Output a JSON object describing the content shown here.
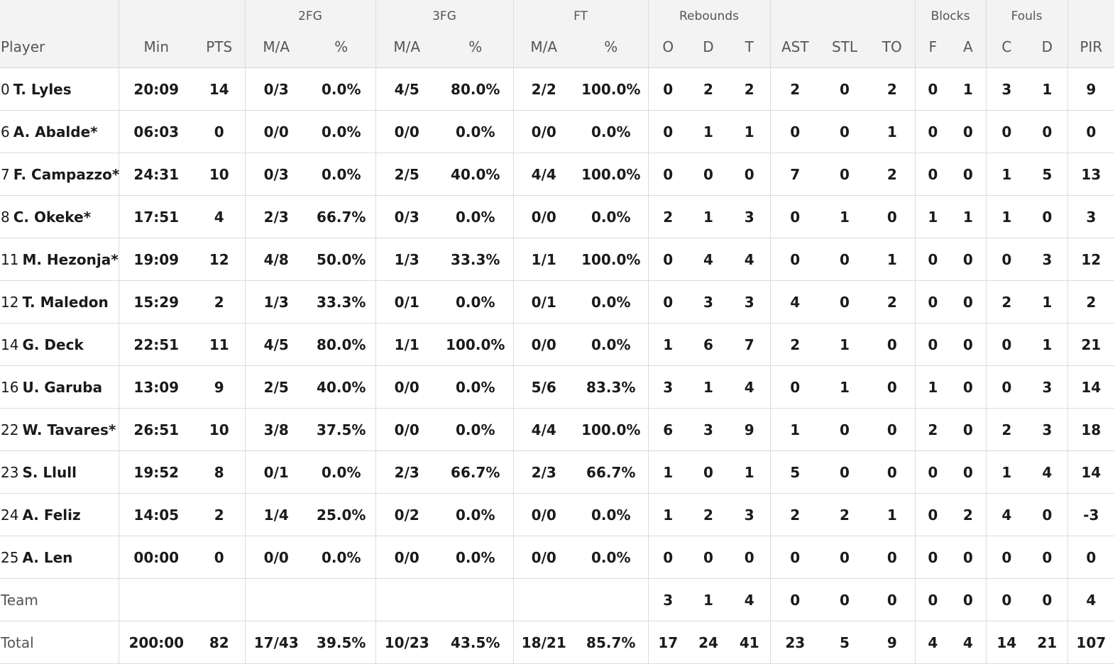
{
  "headers": {
    "groups": {
      "fg2": "2FG",
      "fg3": "3FG",
      "ft": "FT",
      "rebounds": "Rebounds",
      "blocks": "Blocks",
      "fouls": "Fouls"
    },
    "columns": {
      "player": "Player",
      "min": "Min",
      "pts": "PTS",
      "fg2_ma": "M/A",
      "fg2_pct": "%",
      "fg3_ma": "M/A",
      "fg3_pct": "%",
      "ft_ma": "M/A",
      "ft_pct": "%",
      "reb_o": "O",
      "reb_d": "D",
      "reb_t": "T",
      "ast": "AST",
      "stl": "STL",
      "to": "TO",
      "blk_f": "F",
      "blk_a": "A",
      "foul_c": "C",
      "foul_d": "D",
      "pir": "PIR"
    }
  },
  "rows": [
    {
      "num": "0",
      "name": "T. Lyles",
      "min": "20:09",
      "pts": "14",
      "fg2_ma": "0/3",
      "fg2_pct": "0.0%",
      "fg3_ma": "4/5",
      "fg3_pct": "80.0%",
      "ft_ma": "2/2",
      "ft_pct": "100.0%",
      "reb_o": "0",
      "reb_d": "2",
      "reb_t": "2",
      "ast": "2",
      "stl": "0",
      "to": "2",
      "blk_f": "0",
      "blk_a": "1",
      "foul_c": "3",
      "foul_d": "1",
      "pir": "9"
    },
    {
      "num": "6",
      "name": "A. Abalde*",
      "min": "06:03",
      "pts": "0",
      "fg2_ma": "0/0",
      "fg2_pct": "0.0%",
      "fg3_ma": "0/0",
      "fg3_pct": "0.0%",
      "ft_ma": "0/0",
      "ft_pct": "0.0%",
      "reb_o": "0",
      "reb_d": "1",
      "reb_t": "1",
      "ast": "0",
      "stl": "0",
      "to": "1",
      "blk_f": "0",
      "blk_a": "0",
      "foul_c": "0",
      "foul_d": "0",
      "pir": "0"
    },
    {
      "num": "7",
      "name": "F. Campazzo*",
      "min": "24:31",
      "pts": "10",
      "fg2_ma": "0/3",
      "fg2_pct": "0.0%",
      "fg3_ma": "2/5",
      "fg3_pct": "40.0%",
      "ft_ma": "4/4",
      "ft_pct": "100.0%",
      "reb_o": "0",
      "reb_d": "0",
      "reb_t": "0",
      "ast": "7",
      "stl": "0",
      "to": "2",
      "blk_f": "0",
      "blk_a": "0",
      "foul_c": "1",
      "foul_d": "5",
      "pir": "13"
    },
    {
      "num": "8",
      "name": "C. Okeke*",
      "min": "17:51",
      "pts": "4",
      "fg2_ma": "2/3",
      "fg2_pct": "66.7%",
      "fg3_ma": "0/3",
      "fg3_pct": "0.0%",
      "ft_ma": "0/0",
      "ft_pct": "0.0%",
      "reb_o": "2",
      "reb_d": "1",
      "reb_t": "3",
      "ast": "0",
      "stl": "1",
      "to": "0",
      "blk_f": "1",
      "blk_a": "1",
      "foul_c": "1",
      "foul_d": "0",
      "pir": "3"
    },
    {
      "num": "11",
      "name": "M. Hezonja*",
      "min": "19:09",
      "pts": "12",
      "fg2_ma": "4/8",
      "fg2_pct": "50.0%",
      "fg3_ma": "1/3",
      "fg3_pct": "33.3%",
      "ft_ma": "1/1",
      "ft_pct": "100.0%",
      "reb_o": "0",
      "reb_d": "4",
      "reb_t": "4",
      "ast": "0",
      "stl": "0",
      "to": "1",
      "blk_f": "0",
      "blk_a": "0",
      "foul_c": "0",
      "foul_d": "3",
      "pir": "12"
    },
    {
      "num": "12",
      "name": "T. Maledon",
      "min": "15:29",
      "pts": "2",
      "fg2_ma": "1/3",
      "fg2_pct": "33.3%",
      "fg3_ma": "0/1",
      "fg3_pct": "0.0%",
      "ft_ma": "0/1",
      "ft_pct": "0.0%",
      "reb_o": "0",
      "reb_d": "3",
      "reb_t": "3",
      "ast": "4",
      "stl": "0",
      "to": "2",
      "blk_f": "0",
      "blk_a": "0",
      "foul_c": "2",
      "foul_d": "1",
      "pir": "2"
    },
    {
      "num": "14",
      "name": "G. Deck",
      "min": "22:51",
      "pts": "11",
      "fg2_ma": "4/5",
      "fg2_pct": "80.0%",
      "fg3_ma": "1/1",
      "fg3_pct": "100.0%",
      "ft_ma": "0/0",
      "ft_pct": "0.0%",
      "reb_o": "1",
      "reb_d": "6",
      "reb_t": "7",
      "ast": "2",
      "stl": "1",
      "to": "0",
      "blk_f": "0",
      "blk_a": "0",
      "foul_c": "0",
      "foul_d": "1",
      "pir": "21"
    },
    {
      "num": "16",
      "name": "U. Garuba",
      "min": "13:09",
      "pts": "9",
      "fg2_ma": "2/5",
      "fg2_pct": "40.0%",
      "fg3_ma": "0/0",
      "fg3_pct": "0.0%",
      "ft_ma": "5/6",
      "ft_pct": "83.3%",
      "reb_o": "3",
      "reb_d": "1",
      "reb_t": "4",
      "ast": "0",
      "stl": "1",
      "to": "0",
      "blk_f": "1",
      "blk_a": "0",
      "foul_c": "0",
      "foul_d": "3",
      "pir": "14"
    },
    {
      "num": "22",
      "name": "W. Tavares*",
      "min": "26:51",
      "pts": "10",
      "fg2_ma": "3/8",
      "fg2_pct": "37.5%",
      "fg3_ma": "0/0",
      "fg3_pct": "0.0%",
      "ft_ma": "4/4",
      "ft_pct": "100.0%",
      "reb_o": "6",
      "reb_d": "3",
      "reb_t": "9",
      "ast": "1",
      "stl": "0",
      "to": "0",
      "blk_f": "2",
      "blk_a": "0",
      "foul_c": "2",
      "foul_d": "3",
      "pir": "18"
    },
    {
      "num": "23",
      "name": "S. Llull",
      "min": "19:52",
      "pts": "8",
      "fg2_ma": "0/1",
      "fg2_pct": "0.0%",
      "fg3_ma": "2/3",
      "fg3_pct": "66.7%",
      "ft_ma": "2/3",
      "ft_pct": "66.7%",
      "reb_o": "1",
      "reb_d": "0",
      "reb_t": "1",
      "ast": "5",
      "stl": "0",
      "to": "0",
      "blk_f": "0",
      "blk_a": "0",
      "foul_c": "1",
      "foul_d": "4",
      "pir": "14"
    },
    {
      "num": "24",
      "name": "A. Feliz",
      "min": "14:05",
      "pts": "2",
      "fg2_ma": "1/4",
      "fg2_pct": "25.0%",
      "fg3_ma": "0/2",
      "fg3_pct": "0.0%",
      "ft_ma": "0/0",
      "ft_pct": "0.0%",
      "reb_o": "1",
      "reb_d": "2",
      "reb_t": "3",
      "ast": "2",
      "stl": "2",
      "to": "1",
      "blk_f": "0",
      "blk_a": "2",
      "foul_c": "4",
      "foul_d": "0",
      "pir": "-3"
    },
    {
      "num": "25",
      "name": "A. Len",
      "min": "00:00",
      "pts": "0",
      "fg2_ma": "0/0",
      "fg2_pct": "0.0%",
      "fg3_ma": "0/0",
      "fg3_pct": "0.0%",
      "ft_ma": "0/0",
      "ft_pct": "0.0%",
      "reb_o": "0",
      "reb_d": "0",
      "reb_t": "0",
      "ast": "0",
      "stl": "0",
      "to": "0",
      "blk_f": "0",
      "blk_a": "0",
      "foul_c": "0",
      "foul_d": "0",
      "pir": "0"
    }
  ],
  "team_row": {
    "label": "Team",
    "min": "",
    "pts": "",
    "fg2_ma": "",
    "fg2_pct": "",
    "fg3_ma": "",
    "fg3_pct": "",
    "ft_ma": "",
    "ft_pct": "",
    "reb_o": "3",
    "reb_d": "1",
    "reb_t": "4",
    "ast": "0",
    "stl": "0",
    "to": "0",
    "blk_f": "0",
    "blk_a": "0",
    "foul_c": "0",
    "foul_d": "0",
    "pir": "4"
  },
  "total_row": {
    "label": "Total",
    "min": "200:00",
    "pts": "82",
    "fg2_ma": "17/43",
    "fg2_pct": "39.5%",
    "fg3_ma": "10/23",
    "fg3_pct": "43.5%",
    "ft_ma": "18/21",
    "ft_pct": "85.7%",
    "reb_o": "17",
    "reb_d": "24",
    "reb_t": "41",
    "ast": "23",
    "stl": "5",
    "to": "9",
    "blk_f": "4",
    "blk_a": "4",
    "foul_c": "14",
    "foul_d": "21",
    "pir": "107"
  }
}
